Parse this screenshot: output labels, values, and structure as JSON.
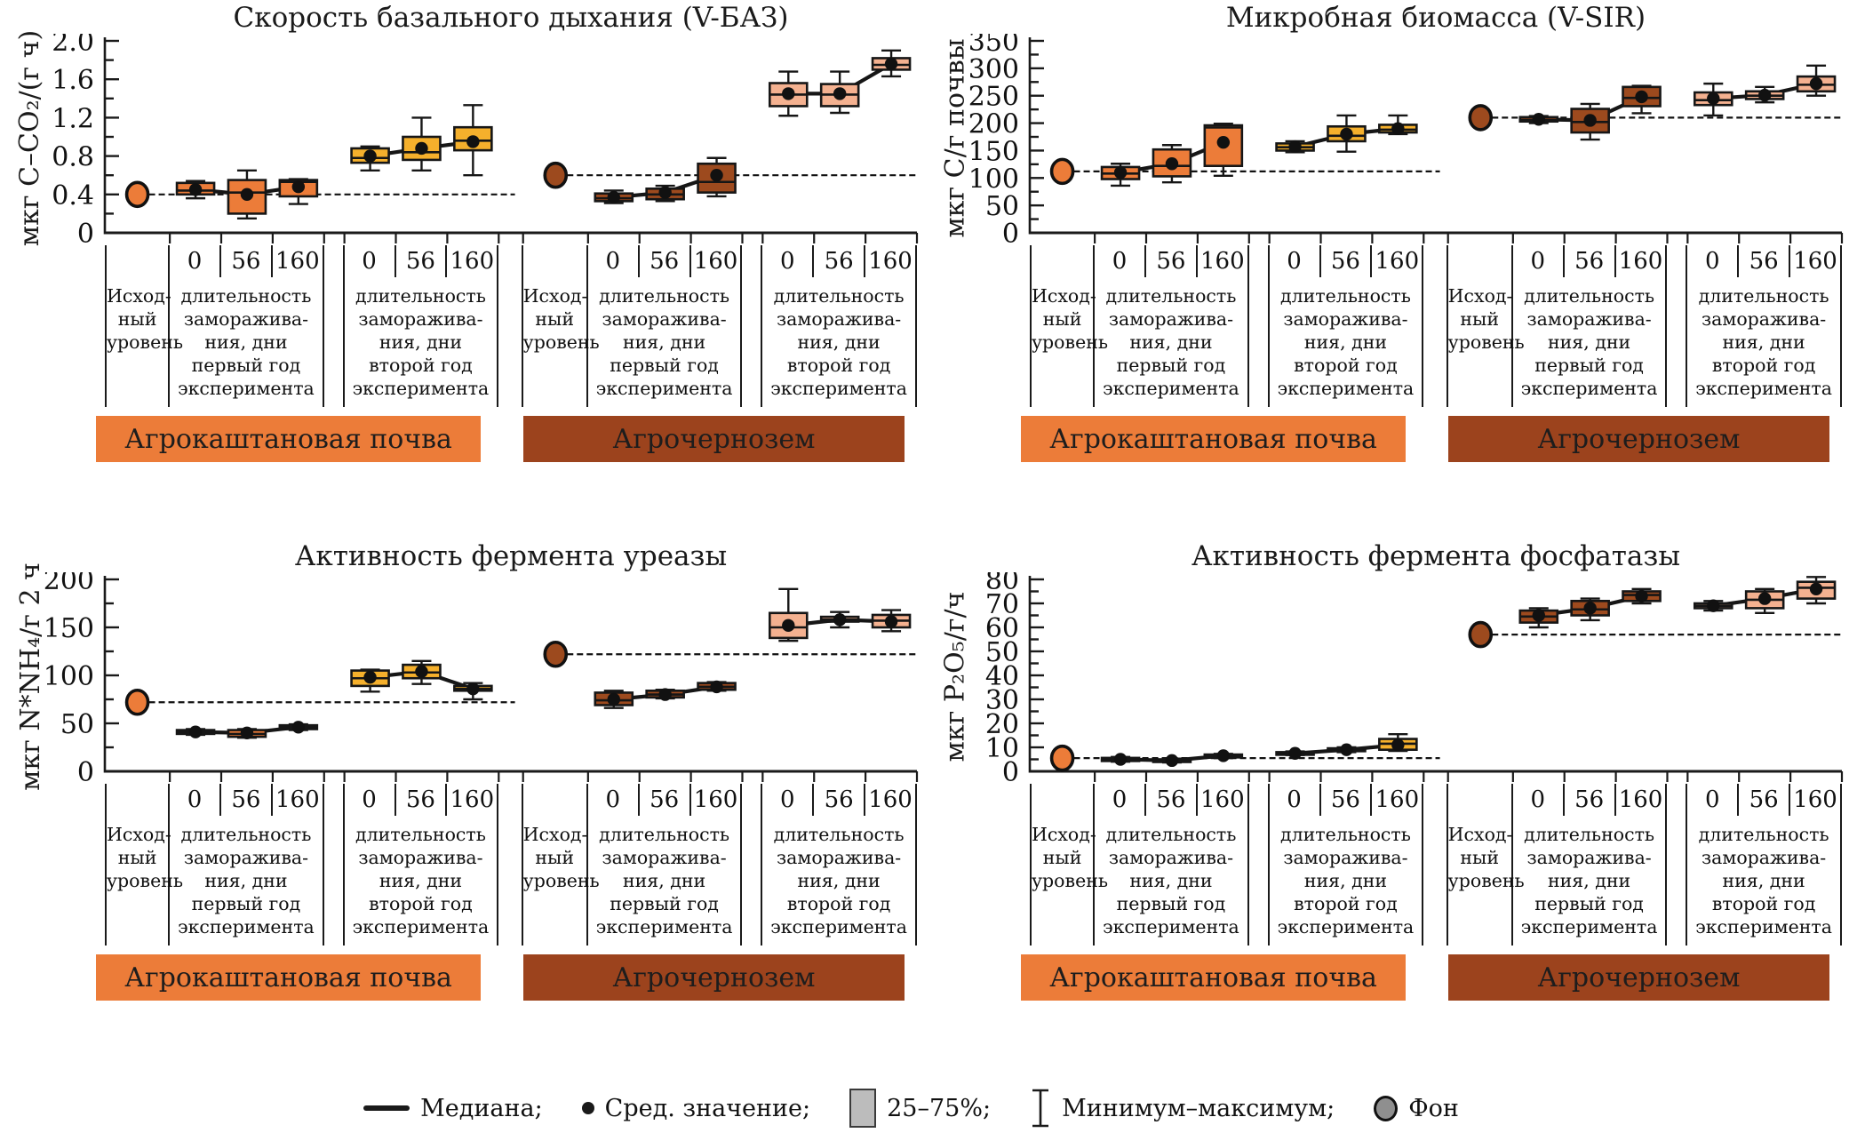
{
  "labels": {
    "fon_cell": "Исход-\nный\nуровень",
    "year_cell_prefix": "длительность\nзаморажива-\nния, дни",
    "year1_suffix": "первый год\nэксперимента",
    "year2_suffix": "второй год\nэксперимента",
    "x_labels": [
      "0",
      "56",
      "160"
    ]
  },
  "legend": {
    "items": [
      {
        "icon": "median-line",
        "label": "Медиана;"
      },
      {
        "icon": "mean-dot",
        "label": "Сред. значение;"
      },
      {
        "icon": "quartile-box",
        "label": "25–75%;"
      },
      {
        "icon": "min-max-whisker",
        "label": "Минимум–максимум;"
      },
      {
        "icon": "background-marker",
        "label": "Фон"
      }
    ],
    "quartile_box_color": "#bcbcbc",
    "fon_marker_color": "#8f8f8f"
  },
  "colors": {
    "axis": "#1a1a1a",
    "chestnut_year1_box": "#ec7c39",
    "chestnut_year2_box": "#f5b02c",
    "chernozem_year1_box": "#9d4a1e",
    "chernozem_year2_box": "#f4b190",
    "banner_chestnut": "#ec7c39",
    "banner_chernozem": "#9c431d"
  },
  "chart_data": [
    {
      "type": "boxplot",
      "title": "Скорость базального дыхания (V-БАЗ)",
      "ylabel": "мкг С–CO₂/(г ч)",
      "ylim": [
        0,
        2.0
      ],
      "ytick_step": 0.4,
      "yminor_step": 0.2,
      "ytick_decimals": 1,
      "grid": false,
      "sections": [
        {
          "soil": "Агрокаштановая почва",
          "banner_color": "#ec7c39",
          "fon_value": 0.4,
          "fon_fill": "#ec7c39",
          "groups": [
            {
              "fill": "#ec7c39",
              "year_suffix": "year1",
              "boxes": [
                {
                  "x": "0",
                  "mean": 0.45,
                  "median": 0.44,
                  "q1": 0.4,
                  "q3": 0.52,
                  "min": 0.36,
                  "max": 0.54
                },
                {
                  "x": "56",
                  "mean": 0.4,
                  "median": 0.42,
                  "q1": 0.2,
                  "q3": 0.55,
                  "min": 0.15,
                  "max": 0.65
                },
                {
                  "x": "160",
                  "mean": 0.48,
                  "median": 0.53,
                  "q1": 0.38,
                  "q3": 0.55,
                  "min": 0.3,
                  "max": 0.56
                }
              ]
            },
            {
              "fill": "#f5b02c",
              "year_suffix": "year2",
              "boxes": [
                {
                  "x": "0",
                  "mean": 0.8,
                  "median": 0.78,
                  "q1": 0.73,
                  "q3": 0.88,
                  "min": 0.65,
                  "max": 0.9
                },
                {
                  "x": "56",
                  "mean": 0.88,
                  "median": 0.84,
                  "q1": 0.76,
                  "q3": 1.0,
                  "min": 0.65,
                  "max": 1.2
                },
                {
                  "x": "160",
                  "mean": 0.95,
                  "median": 0.96,
                  "q1": 0.86,
                  "q3": 1.1,
                  "min": 0.6,
                  "max": 1.33
                }
              ]
            }
          ]
        },
        {
          "soil": "Агрочернозем",
          "banner_color": "#9c431d",
          "fon_value": 0.6,
          "fon_fill": "#9d4a1e",
          "groups": [
            {
              "fill": "#9d4a1e",
              "year_suffix": "year1",
              "boxes": [
                {
                  "x": "0",
                  "mean": 0.37,
                  "median": 0.36,
                  "q1": 0.33,
                  "q3": 0.41,
                  "min": 0.31,
                  "max": 0.44
                },
                {
                  "x": "56",
                  "mean": 0.42,
                  "median": 0.4,
                  "q1": 0.35,
                  "q3": 0.46,
                  "min": 0.33,
                  "max": 0.49
                },
                {
                  "x": "160",
                  "mean": 0.6,
                  "median": 0.53,
                  "q1": 0.42,
                  "q3": 0.72,
                  "min": 0.38,
                  "max": 0.78
                }
              ]
            },
            {
              "fill": "#f4b190",
              "year_suffix": "year2",
              "boxes": [
                {
                  "x": "0",
                  "mean": 1.45,
                  "median": 1.44,
                  "q1": 1.32,
                  "q3": 1.56,
                  "min": 1.22,
                  "max": 1.68
                },
                {
                  "x": "56",
                  "mean": 1.45,
                  "median": 1.44,
                  "q1": 1.32,
                  "q3": 1.55,
                  "min": 1.25,
                  "max": 1.68
                },
                {
                  "x": "160",
                  "mean": 1.76,
                  "median": 1.75,
                  "q1": 1.7,
                  "q3": 1.82,
                  "min": 1.63,
                  "max": 1.9
                }
              ]
            }
          ]
        }
      ]
    },
    {
      "type": "boxplot",
      "title": "Микробная биомасса (V-SIR)",
      "ylabel": "мкг С/г почвы",
      "ylim": [
        0,
        350
      ],
      "ytick_step": 50,
      "yminor_step": 25,
      "ytick_decimals": 0,
      "grid": false,
      "sections": [
        {
          "soil": "Агрокаштановая почва",
          "banner_color": "#ec7c39",
          "fon_value": 112,
          "fon_fill": "#ec7c39",
          "groups": [
            {
              "fill": "#ec7c39",
              "year_suffix": "year1",
              "boxes": [
                {
                  "x": "0",
                  "mean": 110,
                  "median": 108,
                  "q1": 98,
                  "q3": 120,
                  "min": 86,
                  "max": 126
                },
                {
                  "x": "56",
                  "mean": 126,
                  "median": 122,
                  "q1": 103,
                  "q3": 152,
                  "min": 92,
                  "max": 160
                },
                {
                  "x": "160",
                  "mean": 165,
                  "median": 192,
                  "q1": 122,
                  "q3": 196,
                  "min": 104,
                  "max": 199
                }
              ]
            },
            {
              "fill": "#f5b02c",
              "year_suffix": "year2",
              "boxes": [
                {
                  "x": "0",
                  "mean": 157,
                  "median": 156,
                  "q1": 150,
                  "q3": 163,
                  "min": 147,
                  "max": 167
                },
                {
                  "x": "56",
                  "mean": 180,
                  "median": 177,
                  "q1": 167,
                  "q3": 194,
                  "min": 148,
                  "max": 214
                },
                {
                  "x": "160",
                  "mean": 190,
                  "median": 188,
                  "q1": 183,
                  "q3": 197,
                  "min": 180,
                  "max": 214
                }
              ]
            }
          ]
        },
        {
          "soil": "Агрочернозем",
          "banner_color": "#9c431d",
          "fon_value": 210,
          "fon_fill": "#9d4a1e",
          "groups": [
            {
              "fill": "#9d4a1e",
              "year_suffix": "year1",
              "boxes": [
                {
                  "x": "0",
                  "mean": 207,
                  "median": 206,
                  "q1": 203,
                  "q3": 211,
                  "min": 200,
                  "max": 213
                },
                {
                  "x": "56",
                  "mean": 205,
                  "median": 202,
                  "q1": 183,
                  "q3": 226,
                  "min": 170,
                  "max": 235
                },
                {
                  "x": "160",
                  "mean": 248,
                  "median": 246,
                  "q1": 231,
                  "q3": 266,
                  "min": 218,
                  "max": 268
                }
              ]
            },
            {
              "fill": "#f4b190",
              "year_suffix": "year2",
              "boxes": [
                {
                  "x": "0",
                  "mean": 245,
                  "median": 242,
                  "q1": 233,
                  "q3": 256,
                  "min": 214,
                  "max": 272
                },
                {
                  "x": "56",
                  "mean": 251,
                  "median": 250,
                  "q1": 244,
                  "q3": 258,
                  "min": 238,
                  "max": 266
                },
                {
                  "x": "160",
                  "mean": 272,
                  "median": 270,
                  "q1": 258,
                  "q3": 285,
                  "min": 250,
                  "max": 305
                }
              ]
            }
          ]
        }
      ]
    },
    {
      "type": "boxplot",
      "title": "Активность фермента уреазы",
      "ylabel": "мкг N*NH₄/г 2 ч",
      "ylim": [
        0,
        200
      ],
      "ytick_step": 50,
      "yminor_step": 25,
      "ytick_decimals": 0,
      "grid": false,
      "sections": [
        {
          "soil": "Агрокаштановая почва",
          "banner_color": "#ec7c39",
          "fon_value": 72,
          "fon_fill": "#ec7c39",
          "groups": [
            {
              "fill": "#ec7c39",
              "year_suffix": "year1",
              "boxes": [
                {
                  "x": "0",
                  "mean": 41,
                  "median": 41,
                  "q1": 39,
                  "q3": 43,
                  "min": 38,
                  "max": 44
                },
                {
                  "x": "56",
                  "mean": 40,
                  "median": 39,
                  "q1": 36,
                  "q3": 43,
                  "min": 35,
                  "max": 44
                },
                {
                  "x": "160",
                  "mean": 46,
                  "median": 46,
                  "q1": 44,
                  "q3": 48,
                  "min": 43,
                  "max": 49
                }
              ]
            },
            {
              "fill": "#f5b02c",
              "year_suffix": "year2",
              "boxes": [
                {
                  "x": "0",
                  "mean": 98,
                  "median": 97,
                  "q1": 89,
                  "q3": 105,
                  "min": 83,
                  "max": 106
                },
                {
                  "x": "56",
                  "mean": 104,
                  "median": 103,
                  "q1": 97,
                  "q3": 111,
                  "min": 91,
                  "max": 115
                },
                {
                  "x": "160",
                  "mean": 86,
                  "median": 86,
                  "q1": 84,
                  "q3": 89,
                  "min": 75,
                  "max": 92
                }
              ]
            }
          ]
        },
        {
          "soil": "Агрочернозем",
          "banner_color": "#9c431d",
          "fon_value": 122,
          "fon_fill": "#9d4a1e",
          "groups": [
            {
              "fill": "#9d4a1e",
              "year_suffix": "year1",
              "boxes": [
                {
                  "x": "0",
                  "mean": 75,
                  "median": 74,
                  "q1": 69,
                  "q3": 82,
                  "min": 66,
                  "max": 84
                },
                {
                  "x": "56",
                  "mean": 80,
                  "median": 80,
                  "q1": 77,
                  "q3": 84,
                  "min": 76,
                  "max": 85
                },
                {
                  "x": "160",
                  "mean": 88,
                  "median": 88,
                  "q1": 85,
                  "q3": 92,
                  "min": 84,
                  "max": 93
                }
              ]
            },
            {
              "fill": "#f4b190",
              "year_suffix": "year2",
              "boxes": [
                {
                  "x": "0",
                  "mean": 152,
                  "median": 150,
                  "q1": 139,
                  "q3": 165,
                  "min": 136,
                  "max": 190
                },
                {
                  "x": "56",
                  "mean": 158,
                  "median": 158,
                  "q1": 156,
                  "q3": 161,
                  "min": 150,
                  "max": 166
                },
                {
                  "x": "160",
                  "mean": 156,
                  "median": 157,
                  "q1": 150,
                  "q3": 163,
                  "min": 146,
                  "max": 168
                }
              ]
            }
          ]
        }
      ]
    },
    {
      "type": "boxplot",
      "title": "Активность фермента фосфатазы",
      "ylabel": "мкг P₂O₅/г/ч",
      "ylim": [
        0,
        80
      ],
      "ytick_step": 10,
      "yminor_step": 5,
      "ytick_decimals": 0,
      "grid": false,
      "sections": [
        {
          "soil": "Агрокаштановая почва",
          "banner_color": "#ec7c39",
          "fon_value": 5.5,
          "fon_fill": "#ec7c39",
          "groups": [
            {
              "fill": "#ec7c39",
              "year_suffix": "year1",
              "boxes": [
                {
                  "x": "0",
                  "mean": 5.0,
                  "median": 4.8,
                  "q1": 4.3,
                  "q3": 5.6,
                  "min": 4.0,
                  "max": 6.0
                },
                {
                  "x": "56",
                  "mean": 4.5,
                  "median": 4.4,
                  "q1": 4.0,
                  "q3": 5.0,
                  "min": 3.7,
                  "max": 5.3
                },
                {
                  "x": "160",
                  "mean": 6.5,
                  "median": 6.3,
                  "q1": 5.8,
                  "q3": 7.0,
                  "min": 5.5,
                  "max": 7.3
                }
              ]
            },
            {
              "fill": "#f5b02c",
              "year_suffix": "year2",
              "boxes": [
                {
                  "x": "0",
                  "mean": 7.5,
                  "median": 7.4,
                  "q1": 7.0,
                  "q3": 8.0,
                  "min": 6.8,
                  "max": 8.3
                },
                {
                  "x": "56",
                  "mean": 9.0,
                  "median": 8.9,
                  "q1": 8.4,
                  "q3": 9.6,
                  "min": 8.0,
                  "max": 10.0
                },
                {
                  "x": "160",
                  "mean": 11.0,
                  "median": 11.5,
                  "q1": 9.0,
                  "q3": 13.5,
                  "min": 8.5,
                  "max": 15.5
                }
              ]
            }
          ]
        },
        {
          "soil": "Агрочернозем",
          "banner_color": "#9c431d",
          "fon_value": 57,
          "fon_fill": "#9d4a1e",
          "groups": [
            {
              "fill": "#9d4a1e",
              "year_suffix": "year1",
              "boxes": [
                {
                  "x": "0",
                  "mean": 65,
                  "median": 64.5,
                  "q1": 62,
                  "q3": 67,
                  "min": 60,
                  "max": 68
                },
                {
                  "x": "56",
                  "mean": 68,
                  "median": 67.5,
                  "q1": 65,
                  "q3": 71,
                  "min": 63,
                  "max": 72
                },
                {
                  "x": "160",
                  "mean": 73,
                  "median": 73.5,
                  "q1": 71,
                  "q3": 75,
                  "min": 70,
                  "max": 76
                }
              ]
            },
            {
              "fill": "#f4b190",
              "year_suffix": "year2",
              "boxes": [
                {
                  "x": "0",
                  "mean": 69,
                  "median": 69.0,
                  "q1": 68,
                  "q3": 70,
                  "min": 67,
                  "max": 71
                },
                {
                  "x": "56",
                  "mean": 72,
                  "median": 71.5,
                  "q1": 68,
                  "q3": 75,
                  "min": 66,
                  "max": 76
                },
                {
                  "x": "160",
                  "mean": 76,
                  "median": 76.5,
                  "q1": 72,
                  "q3": 79,
                  "min": 70,
                  "max": 81
                }
              ]
            }
          ]
        }
      ]
    }
  ]
}
